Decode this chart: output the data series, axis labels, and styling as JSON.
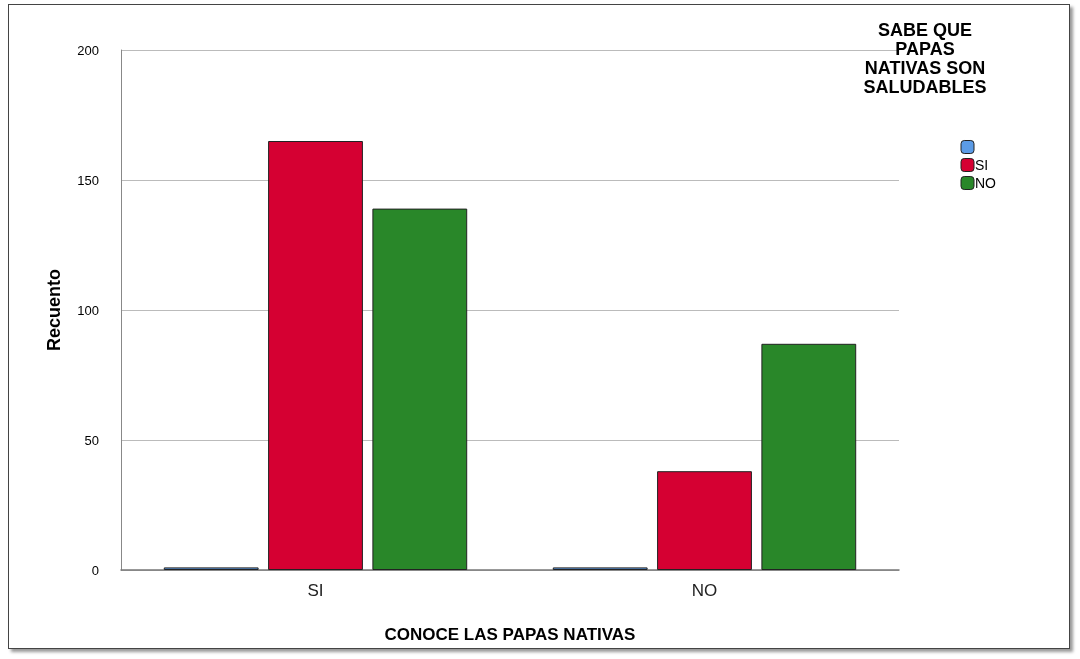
{
  "chart_data": {
    "type": "bar",
    "xlabel": "CONOCE LAS PAPAS NATIVAS",
    "ylabel": "Recuento",
    "legend_title": "SABE QUE\nPAPAS\nNATIVAS SON\nSALUDABLES",
    "categories": [
      "SI",
      "NO"
    ],
    "series": [
      {
        "color": "#5b9be6",
        "values": [
          1,
          1
        ]
      },
      {
        "name": "SI",
        "color": "#d50032",
        "values": [
          165,
          38
        ]
      },
      {
        "name": "NO",
        "color": "#298729",
        "values": [
          139,
          87
        ]
      }
    ],
    "ylim": [
      0,
      200
    ],
    "yticks": [
      0,
      50,
      100,
      150,
      200
    ],
    "grid": "y",
    "legend": "top right"
  }
}
